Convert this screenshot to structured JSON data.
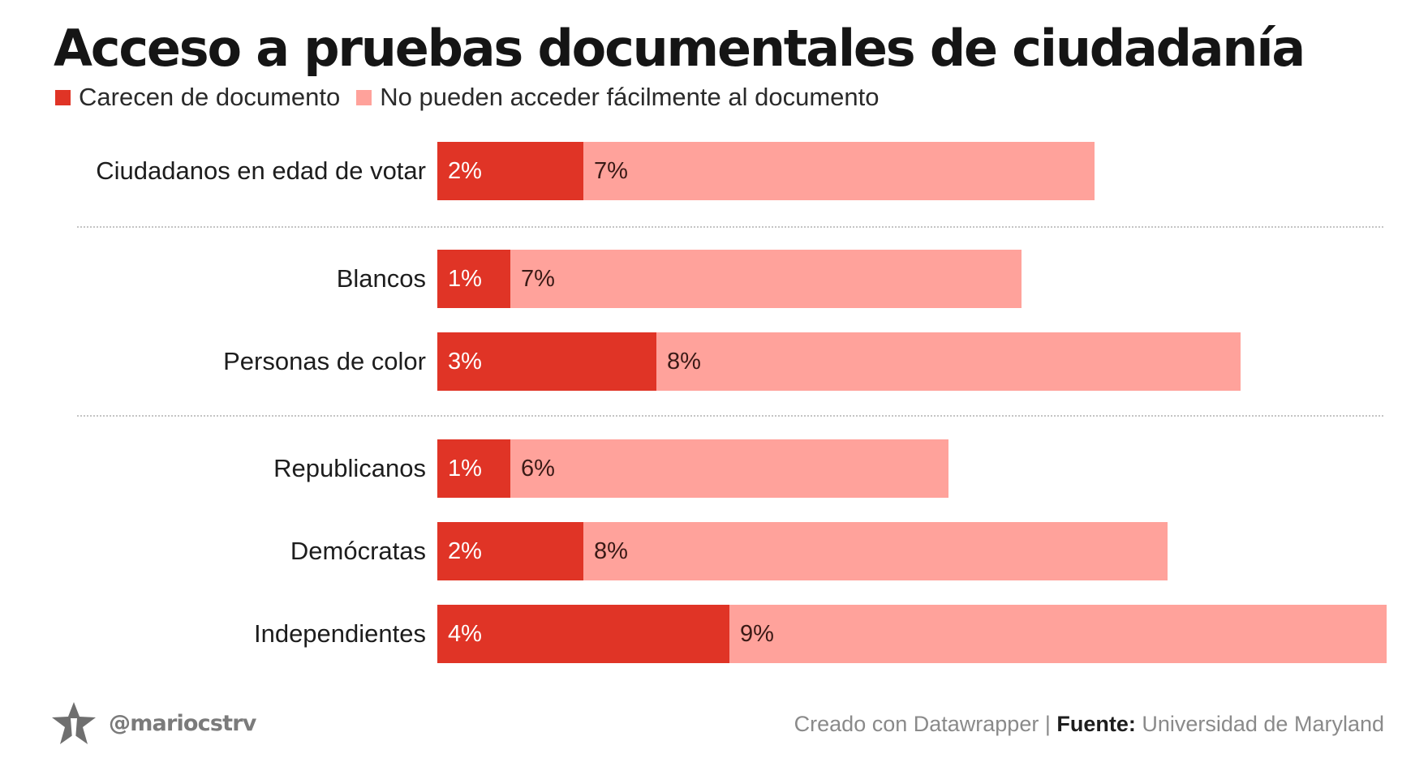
{
  "title": "Acceso a pruebas documentales de ciudadanía",
  "colors": {
    "lack": "#e03426",
    "no_access": "#ffa29b",
    "lack_label_text": "#ffffff",
    "no_access_label_text": "#3a1a16"
  },
  "chart_data": {
    "type": "bar",
    "orientation": "horizontal",
    "stacked": true,
    "title": "Acceso a pruebas documentales de ciudadanía",
    "categories": [
      "Ciudadanos en edad de votar",
      "Blancos",
      "Personas de color",
      "Republicanos",
      "Demócratas",
      "Independientes"
    ],
    "groups": [
      [
        "Ciudadanos en edad de votar"
      ],
      [
        "Blancos",
        "Personas de color"
      ],
      [
        "Republicanos",
        "Demócratas",
        "Independientes"
      ]
    ],
    "series": [
      {
        "name": "Carecen de documento",
        "values": [
          2,
          1,
          3,
          1,
          2,
          4
        ],
        "labels": [
          "2%",
          "1%",
          "3%",
          "1%",
          "2%",
          "4%"
        ],
        "color": "#e03426"
      },
      {
        "name": "No pueden acceder fácilmente al documento",
        "values": [
          7,
          7,
          8,
          6,
          8,
          9
        ],
        "labels": [
          "7%",
          "7%",
          "8%",
          "6%",
          "8%",
          "9%"
        ],
        "color": "#ffa29b"
      }
    ],
    "xlim": [
      0,
      13
    ],
    "unit": "%",
    "legend_position": "top-left",
    "grid": false
  },
  "footer": {
    "handle": "@mariocstrv",
    "credit": "Creado con Datawrapper | ",
    "source_label": "Fuente:",
    "source": " Universidad de Maryland"
  },
  "icons": {
    "logo": "star-logo-icon"
  }
}
